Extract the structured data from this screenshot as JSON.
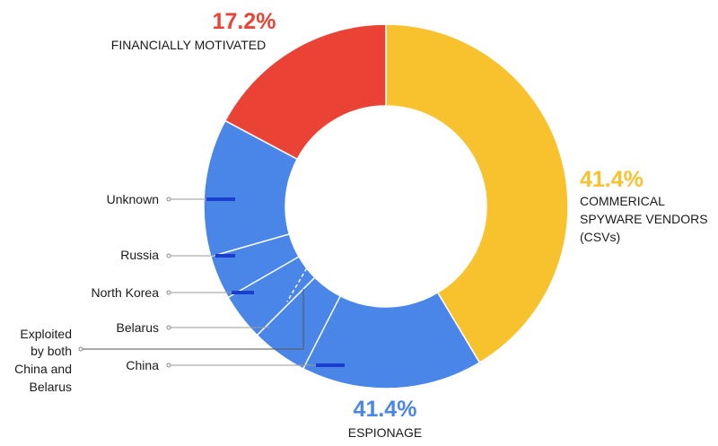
{
  "chart_data": {
    "type": "pie",
    "donut": true,
    "categories": [
      "COMMERICAL SPYWARE VENDORS (CSVs)",
      "ESPIONAGE",
      "FINANCIALLY MOTIVATED"
    ],
    "values": [
      41.4,
      41.4,
      17.2
    ],
    "colors": [
      "#f8c22e",
      "#4a86e8",
      "#ea4335"
    ],
    "labels": {
      "csv": {
        "pct": "41.4%",
        "lines": [
          "COMMERICAL",
          "SPYWARE VENDORS",
          "(CSVs)"
        ]
      },
      "espionage": {
        "pct": "41.4%",
        "lines": [
          "ESPIONAGE"
        ]
      },
      "financial": {
        "pct": "17.2%",
        "lines": [
          "FINANCIALLY MOTIVATED"
        ]
      }
    },
    "espionage_breakdown": {
      "labels": [
        "Unknown",
        "Russia",
        "North Korea",
        "Belarus",
        "China"
      ],
      "shared_label_lines": [
        "Exploited",
        "by both",
        "China and",
        "Belarus"
      ]
    }
  }
}
